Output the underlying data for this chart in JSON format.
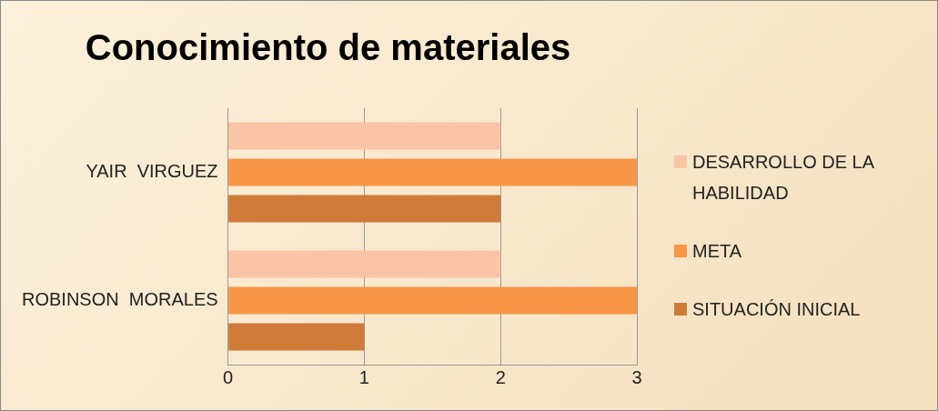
{
  "chart_data": {
    "type": "bar",
    "orientation": "horizontal",
    "title": "Conocimiento de materiales",
    "categories": [
      "YAIR  VIRGUEZ",
      "ROBINSON  MORALES"
    ],
    "series": [
      {
        "name": "DESARROLLO DE LA HABILIDAD",
        "color": "#fac4a6",
        "values": [
          2,
          2
        ]
      },
      {
        "name": "META",
        "color": "#f79646",
        "values": [
          3,
          3
        ]
      },
      {
        "name": "SITUACIÓN INICIAL",
        "color": "#cf7b3a",
        "values": [
          2,
          1
        ]
      }
    ],
    "xlim": [
      0,
      3
    ],
    "xticks": [
      0,
      1,
      2,
      3
    ],
    "grid": "x",
    "legend": "right"
  }
}
